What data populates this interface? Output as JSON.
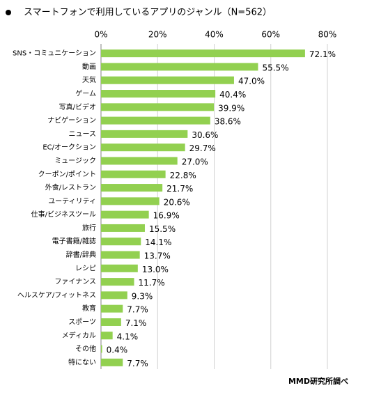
{
  "chart_data": {
    "type": "bar",
    "orientation": "horizontal",
    "title": "スマートフォンで利用しているアプリのジャンル（N=562）",
    "source": "MMD研究所調べ",
    "categories": [
      "SNS・コミュニケーション",
      "動画",
      "天気",
      "ゲーム",
      "写真/ビデオ",
      "ナビゲーション",
      "ニュース",
      "EC/オークション",
      "ミュージック",
      "クーポン/ポイント",
      "外食/レストラン",
      "ユーティリティ",
      "仕事/ビジネスツール",
      "旅行",
      "電子書籍/雑誌",
      "辞書/辞典",
      "レシピ",
      "ファイナンス",
      "ヘルスケア/フィットネス",
      "教育",
      "スポーツ",
      "メディカル",
      "その他",
      "特にない"
    ],
    "values": [
      72.1,
      55.5,
      47.0,
      40.4,
      39.9,
      38.6,
      30.6,
      29.7,
      27.0,
      22.8,
      21.7,
      20.6,
      16.9,
      15.5,
      14.1,
      13.7,
      13.0,
      11.7,
      9.3,
      7.7,
      7.1,
      4.1,
      0.4,
      7.7
    ],
    "value_labels": [
      "72.1%",
      "55.5%",
      "47.0%",
      "40.4%",
      "39.9%",
      "38.6%",
      "30.6%",
      "29.7%",
      "27.0%",
      "22.8%",
      "21.7%",
      "20.6%",
      "16.9%",
      "15.5%",
      "14.1%",
      "13.7%",
      "13.0%",
      "11.7%",
      "9.3%",
      "7.7%",
      "7.1%",
      "4.1%",
      "0.4%",
      "7.7%"
    ],
    "color": "#92d050",
    "xlim": [
      0,
      80
    ],
    "xticks": [
      {
        "value": 0,
        "label": "0%"
      },
      {
        "value": 20,
        "label": "20%"
      },
      {
        "value": 40,
        "label": "40%"
      },
      {
        "value": 60,
        "label": "60%"
      },
      {
        "value": 80,
        "label": "80%"
      }
    ],
    "grid": true
  }
}
